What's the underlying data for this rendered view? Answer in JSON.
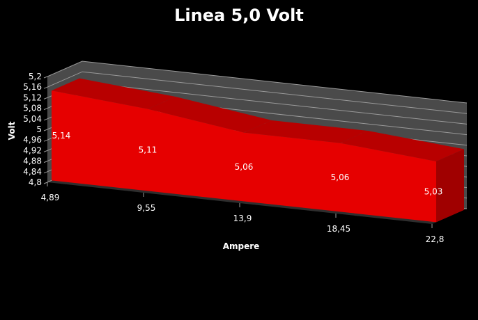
{
  "chart_data": {
    "type": "area",
    "title": "Linea 5,0 Volt",
    "xlabel": "Ampere",
    "ylabel": "Volt",
    "categories": [
      "4,89",
      "9,55",
      "13,9",
      "18,45",
      "22,8"
    ],
    "series": [
      {
        "values": [
          5.14,
          5.11,
          5.06,
          5.06,
          5.03
        ],
        "data_labels": [
          "5,14",
          "5,11",
          "5,06",
          "5,06",
          "5,03"
        ],
        "color": "#e60000"
      }
    ],
    "ylim": [
      4.8,
      5.2
    ],
    "yticks": [
      4.8,
      4.84,
      4.88,
      4.92,
      4.96,
      5,
      5.04,
      5.08,
      5.12,
      5.16,
      5.2
    ],
    "ytick_labels": [
      "4,8",
      "4,84",
      "4,88",
      "4,92",
      "4,96",
      "5",
      "5,04",
      "5,08",
      "5,12",
      "5,16",
      "5,2"
    ],
    "grid": true,
    "three_d": true,
    "legend": "none"
  },
  "colors": {
    "background": "#000000",
    "wall": "#4a4a4a",
    "floor": "#2e2e2e",
    "gridline": "#9a9a9a",
    "area_front": "#e60000",
    "area_top": "#b80000",
    "area_side": "#a00000",
    "text": "#ffffff"
  }
}
